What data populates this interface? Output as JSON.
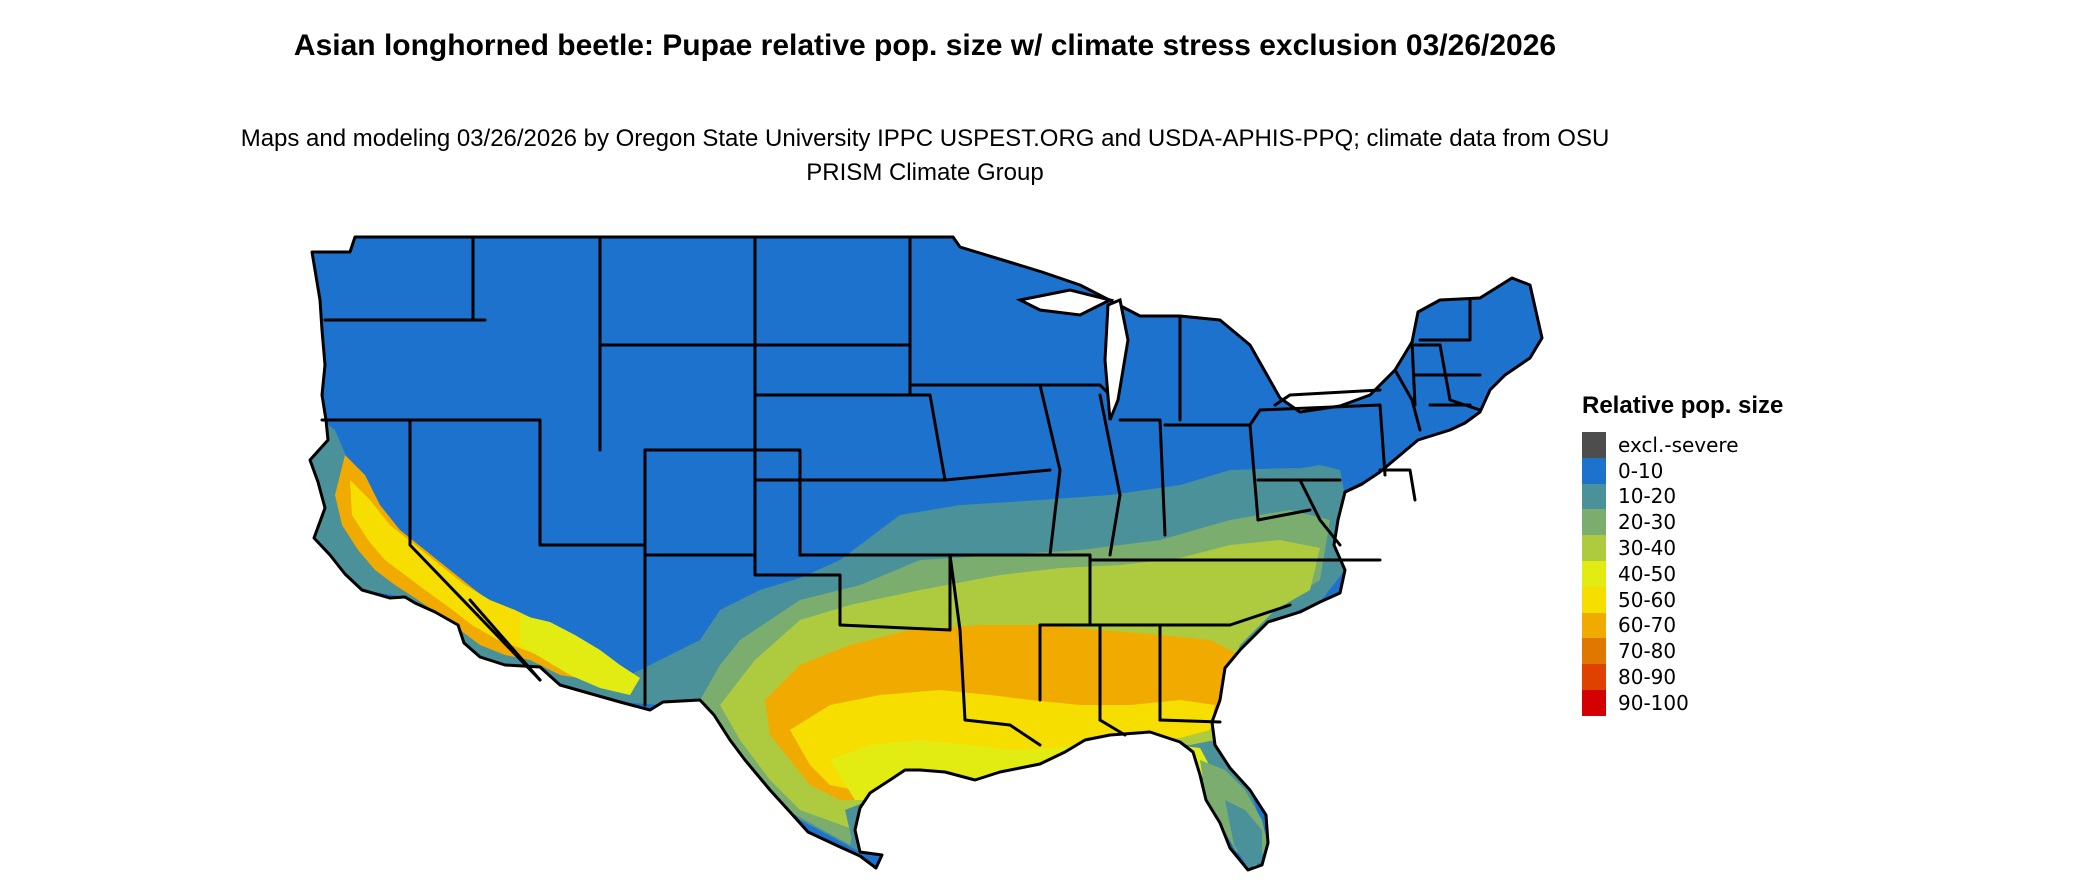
{
  "title": "Asian longhorned beetle: Pupae relative pop. size w/ climate stress exclusion 03/26/2026",
  "subtitle": "Maps and modeling 03/26/2026 by Oregon State University IPPC USPEST.ORG and USDA-APHIS-PPQ; climate data from OSU PRISM Climate Group",
  "legend": {
    "title": "Relative pop. size",
    "items": [
      {
        "label": "excl.-severe",
        "color": "#4d4d4d"
      },
      {
        "label": "0-10",
        "color": "#1c72cc"
      },
      {
        "label": "10-20",
        "color": "#4a9199"
      },
      {
        "label": "20-30",
        "color": "#7aad6e"
      },
      {
        "label": "30-40",
        "color": "#aecb3f"
      },
      {
        "label": "40-50",
        "color": "#e2ec12"
      },
      {
        "label": "50-60",
        "color": "#f6df00"
      },
      {
        "label": "60-70",
        "color": "#f0aa00"
      },
      {
        "label": "70-80",
        "color": "#e07800"
      },
      {
        "label": "80-90",
        "color": "#de4100"
      },
      {
        "label": "90-100",
        "color": "#d40000"
      }
    ]
  }
}
